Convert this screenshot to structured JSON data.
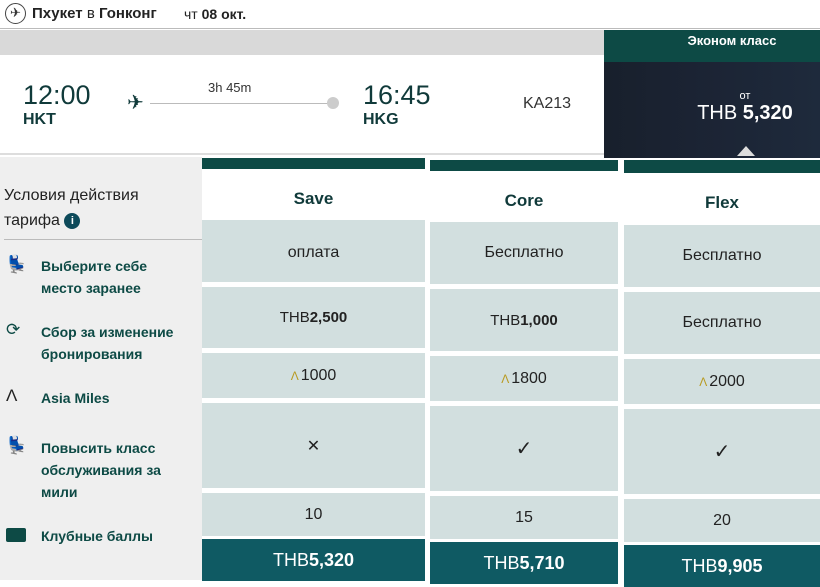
{
  "header": {
    "origin": "Пхукет",
    "connector": "в",
    "destination": "Гонконг",
    "weekday": "чт",
    "date": "08 окт."
  },
  "flight": {
    "dep_time": "12:00",
    "dep_code": "HKT",
    "duration": "3h 45m",
    "arr_time": "16:45",
    "arr_code": "HKG",
    "flight_no": "KA213"
  },
  "cabin": {
    "label": "Эконом класс",
    "from": "от",
    "currency": "THB",
    "price": "5,320"
  },
  "conditions": {
    "title_line1": "Условия действия",
    "title_line2": "тарифа",
    "info_icon": "i",
    "features": [
      {
        "icon": "seat-icon",
        "line1": "Выберите себе",
        "line2": "место заранее"
      },
      {
        "icon": "refresh-icon",
        "line1": "Сбор за изменение",
        "line2": "бронирования"
      },
      {
        "icon": "asia-miles-icon",
        "line1": "Asia Miles"
      },
      {
        "icon": "seat-upgrade-icon",
        "line1": "Повысить класс",
        "line2": "обслуживания за",
        "line3": "мили"
      },
      {
        "icon": "club-icon",
        "line1": "Клубные баллы"
      }
    ]
  },
  "fares": [
    {
      "name": "Save",
      "seat": "оплата",
      "change_cur": "THB",
      "change_amt": "2,500",
      "change_text": "",
      "miles": "1000",
      "upgrade": "✕",
      "club": "10",
      "price_cur": "THB",
      "price": "5,320"
    },
    {
      "name": "Core",
      "seat": "Бесплатно",
      "change_cur": "THB",
      "change_amt": "1,000",
      "change_text": "",
      "miles": "1800",
      "upgrade": "✓",
      "club": "15",
      "price_cur": "THB",
      "price": "5,710"
    },
    {
      "name": "Flex",
      "seat": "Бесплатно",
      "change_cur": "",
      "change_amt": "",
      "change_text": "Бесплатно",
      "miles": "2000",
      "upgrade": "✓",
      "club": "20",
      "price_cur": "THB",
      "price": "9,905"
    }
  ],
  "colors": {
    "accent": "#0d4a45",
    "cell": "#d2dfdf",
    "price_bg": "#0f5a63",
    "navy": "#1b2333"
  }
}
